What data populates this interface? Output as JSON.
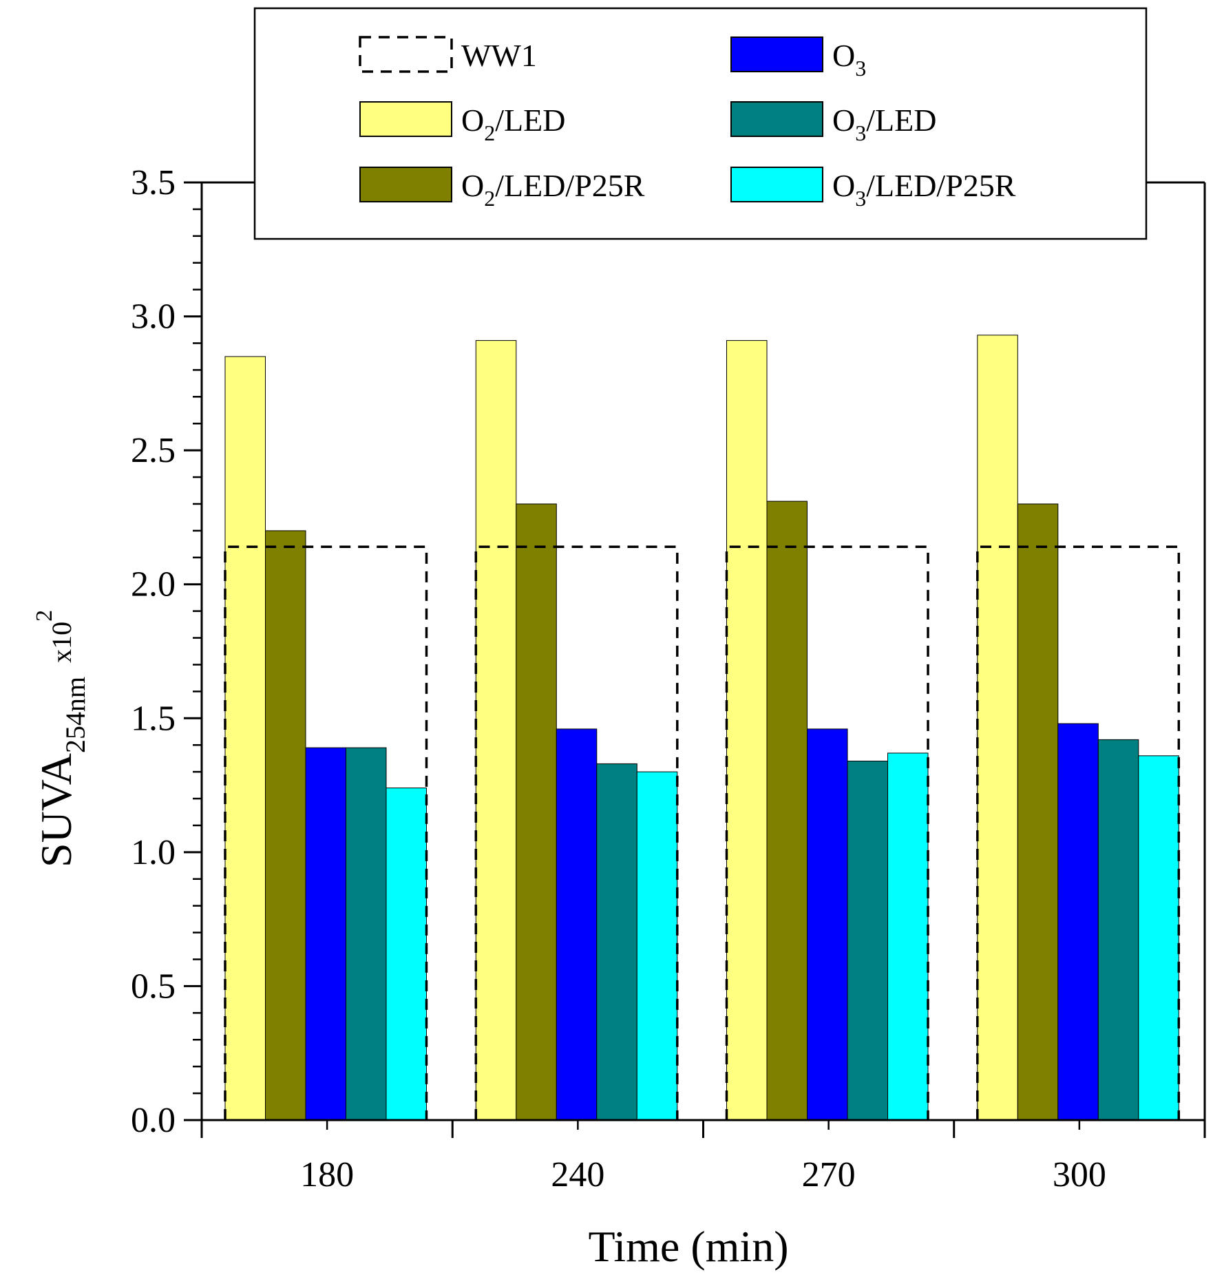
{
  "chart_data": {
    "type": "bar",
    "title": "",
    "xlabel": "Time (min)",
    "ylabel": {
      "main": "SUVA",
      "subscript": "254nm",
      "multiplier": "x10",
      "superscript": "2"
    },
    "categories": [
      "180",
      "240",
      "270",
      "300"
    ],
    "ylim": [
      0,
      3.5
    ],
    "y_ticks": [
      "0.0",
      "0.5",
      "1.0",
      "1.5",
      "2.0",
      "2.5",
      "3.0",
      "3.5"
    ],
    "y_tick_values": [
      0,
      0.5,
      1.0,
      1.5,
      2.0,
      2.5,
      3.0,
      3.5
    ],
    "grid": false,
    "legend_position": "top",
    "reference_series": {
      "name": "WW1",
      "style": "dashed-outline",
      "values": [
        2.14,
        2.14,
        2.14,
        2.14
      ]
    },
    "series": [
      {
        "name": "O2/LED",
        "label_main": "O",
        "label_sub": "2",
        "label_rest": "/LED",
        "color": "#FFFF80",
        "values": [
          2.85,
          2.91,
          2.91,
          2.93
        ]
      },
      {
        "name": "O2/LED/P25R",
        "label_main": "O",
        "label_sub": "2",
        "label_rest": "/LED/P25R",
        "color": "#808000",
        "values": [
          2.2,
          2.3,
          2.31,
          2.3
        ]
      },
      {
        "name": "O3",
        "label_main": "O",
        "label_sub": "3",
        "label_rest": "",
        "color": "#0000FF",
        "values": [
          1.39,
          1.46,
          1.46,
          1.48
        ]
      },
      {
        "name": "O3/LED",
        "label_main": "O",
        "label_sub": "3",
        "label_rest": "/LED",
        "color": "#008080",
        "values": [
          1.39,
          1.33,
          1.34,
          1.42
        ]
      },
      {
        "name": "O3/LED/P25R",
        "label_main": "O",
        "label_sub": "3",
        "label_rest": "/LED/P25R",
        "color": "#00FFFF",
        "values": [
          1.24,
          1.3,
          1.37,
          1.36
        ]
      }
    ]
  }
}
